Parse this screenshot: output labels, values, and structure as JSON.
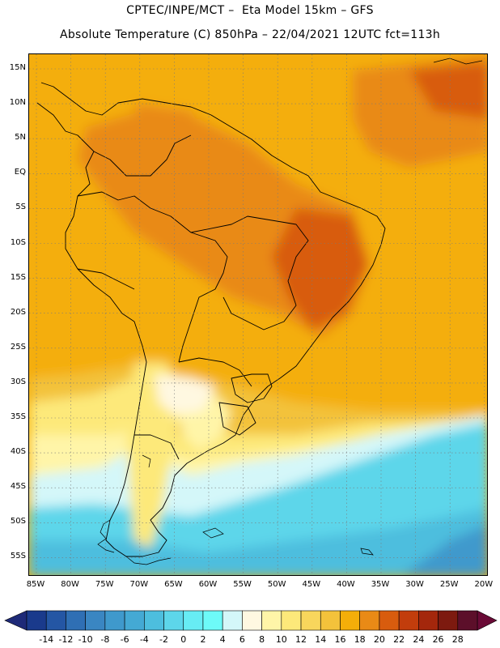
{
  "header": {
    "title_line1": "CPTEC/INPE/MCT –  Eta Model 15km – GFS",
    "title_line2": "Absolute Temperature (C) 850hPa – 22/04/2021 12UTC fct=113h"
  },
  "map": {
    "lat_labels": [
      "15N",
      "10N",
      "5N",
      "EQ",
      "5S",
      "10S",
      "15S",
      "20S",
      "25S",
      "30S",
      "35S",
      "40S",
      "45S",
      "50S",
      "55S"
    ],
    "lon_labels": [
      "85W",
      "80W",
      "75W",
      "70W",
      "65W",
      "60W",
      "55W",
      "50W",
      "45W",
      "40W",
      "35W",
      "30W",
      "25W",
      "20W"
    ],
    "grid": "dotted",
    "borders_color": "#000000"
  },
  "colorbar": {
    "labels": [
      "-14",
      "-12",
      "-10",
      "-8",
      "-6",
      "-4",
      "-2",
      "0",
      "2",
      "4",
      "6",
      "8",
      "10",
      "12",
      "14",
      "16",
      "18",
      "20",
      "22",
      "24",
      "26",
      "28"
    ],
    "colors": [
      "#1a3a8c",
      "#2456a4",
      "#2f6fb4",
      "#3a86c2",
      "#3f99cc",
      "#44a9d4",
      "#4dbede",
      "#5dd6ea",
      "#67ecf4",
      "#6dfaf8",
      "#d4f7f9",
      "#fff8e1",
      "#fff5a8",
      "#fde97a",
      "#f8d65c",
      "#f3c23b",
      "#f4ae09",
      "#e98a16",
      "#d85c0e",
      "#c23d0c",
      "#a4270c",
      "#7d1a0f",
      "#5c0f2a"
    ],
    "under_color": "#1e2a78",
    "over_color": "#6a0a36"
  }
}
